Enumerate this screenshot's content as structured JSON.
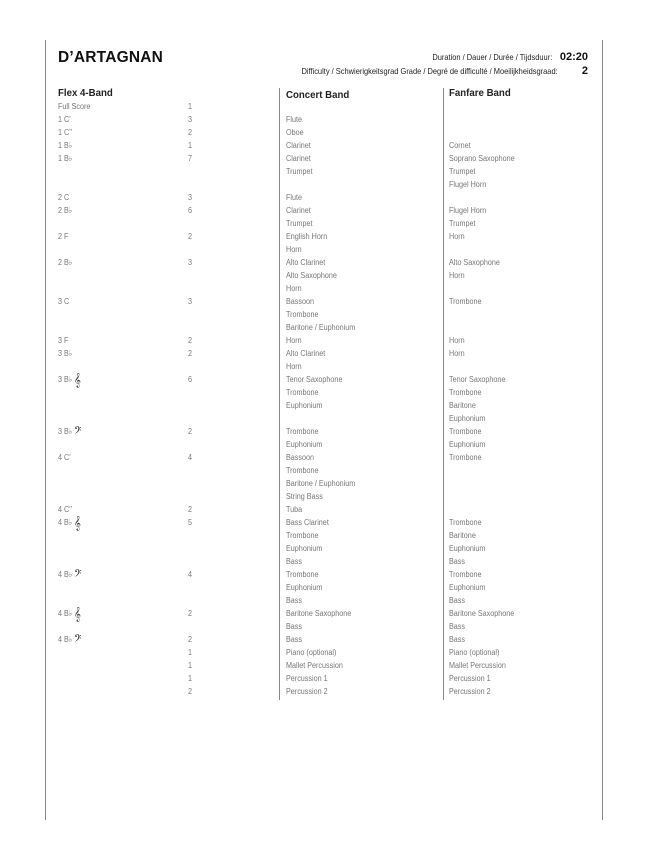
{
  "title": "D’ARTAGNAN",
  "duration": {
    "label": "Duration / Dauer / Durée / Tijdsduur:",
    "value": "02:20"
  },
  "difficulty": {
    "label": "Difficulty / Schwierigkeitsgrad Grade / Degré de difficulté / Moeilijkheidsgraad:",
    "value": "2"
  },
  "columns": {
    "flex": "Flex 4-Band",
    "concert": "Concert Band",
    "fanfare": "Fanfare Band"
  },
  "rows": [
    {
      "part": "Full Score",
      "count": "1",
      "concert": "",
      "fanfare": ""
    },
    {
      "part": "1 C'",
      "count": "3",
      "concert": "Flute",
      "fanfare": ""
    },
    {
      "part": "1 C''",
      "count": "2",
      "concert": "Oboe",
      "fanfare": ""
    },
    {
      "part": "1 B♭",
      "count": "1",
      "concert": "Clarinet",
      "fanfare": "Cornet"
    },
    {
      "part": "1 B♭",
      "count": "7",
      "concert": "Clarinet",
      "fanfare": "Soprano Saxophone"
    },
    {
      "part": "",
      "count": "",
      "concert": "Trumpet",
      "fanfare": "Trumpet"
    },
    {
      "part": "",
      "count": "",
      "concert": "",
      "fanfare": "Flugel Horn"
    },
    {
      "part": "2 C",
      "count": "3",
      "concert": "Flute",
      "fanfare": ""
    },
    {
      "part": "2 B♭",
      "count": "6",
      "concert": "Clarinet",
      "fanfare": "Flugel Horn"
    },
    {
      "part": "",
      "count": "",
      "concert": "Trumpet",
      "fanfare": "Trumpet"
    },
    {
      "part": "2 F",
      "count": "2",
      "concert": "English Horn",
      "fanfare": "Horn"
    },
    {
      "part": "",
      "count": "",
      "concert": "Horn",
      "fanfare": ""
    },
    {
      "part": "2 B♭",
      "count": "3",
      "concert": "Alto Clarinet",
      "fanfare": "Alto Saxophone"
    },
    {
      "part": "",
      "count": "",
      "concert": "Alto Saxophone",
      "fanfare": "Horn"
    },
    {
      "part": "",
      "count": "",
      "concert": "Horn",
      "fanfare": ""
    },
    {
      "part": "3 C",
      "count": "3",
      "concert": "Bassoon",
      "fanfare": "Trombone"
    },
    {
      "part": "",
      "count": "",
      "concert": "Trombone",
      "fanfare": ""
    },
    {
      "part": "",
      "count": "",
      "concert": "Baritone / Euphonium",
      "fanfare": ""
    },
    {
      "part": "3 F",
      "count": "2",
      "concert": "Horn",
      "fanfare": "Horn"
    },
    {
      "part": "3 B♭",
      "count": "2",
      "concert": "Alto Clarinet",
      "fanfare": "Horn"
    },
    {
      "part": "",
      "count": "",
      "concert": "Horn",
      "fanfare": ""
    },
    {
      "part": "3 B♭",
      "clef": "treble",
      "count": "6",
      "concert": "Tenor Saxophone",
      "fanfare": "Tenor Saxophone"
    },
    {
      "part": "",
      "count": "",
      "concert": "Trombone",
      "fanfare": "Trombone"
    },
    {
      "part": "",
      "count": "",
      "concert": "Euphonium",
      "fanfare": "Baritone"
    },
    {
      "part": "",
      "count": "",
      "concert": "",
      "fanfare": "Euphonium"
    },
    {
      "part": "3 B♭",
      "clef": "bass",
      "count": "2",
      "concert": "Trombone",
      "fanfare": "Trombone"
    },
    {
      "part": "",
      "count": "",
      "concert": "Euphonium",
      "fanfare": "Euphonium"
    },
    {
      "part": "4 C'",
      "count": "4",
      "concert": "Bassoon",
      "fanfare": "Trombone"
    },
    {
      "part": "",
      "count": "",
      "concert": "Trombone",
      "fanfare": ""
    },
    {
      "part": "",
      "count": "",
      "concert": "Baritone / Euphonium",
      "fanfare": ""
    },
    {
      "part": "",
      "count": "",
      "concert": "String Bass",
      "fanfare": ""
    },
    {
      "part": "4 C''",
      "count": "2",
      "concert": "Tuba",
      "fanfare": ""
    },
    {
      "part": "4 B♭",
      "clef": "treble",
      "count": "5",
      "concert": "Bass Clarinet",
      "fanfare": "Trombone"
    },
    {
      "part": "",
      "count": "",
      "concert": "Trombone",
      "fanfare": "Baritone"
    },
    {
      "part": "",
      "count": "",
      "concert": "Euphonium",
      "fanfare": "Euphonium"
    },
    {
      "part": "",
      "count": "",
      "concert": "Bass",
      "fanfare": "Bass"
    },
    {
      "part": "4 B♭",
      "clef": "bass",
      "count": "4",
      "concert": "Trombone",
      "fanfare": "Trombone"
    },
    {
      "part": "",
      "count": "",
      "concert": "Euphonium",
      "fanfare": "Euphonium"
    },
    {
      "part": "",
      "count": "",
      "concert": "Bass",
      "fanfare": "Bass"
    },
    {
      "part": "4 B♭",
      "clef": "treble",
      "count": "2",
      "concert": "Baritone Saxophone",
      "fanfare": "Baritone Saxophone"
    },
    {
      "part": "",
      "count": "",
      "concert": "Bass",
      "fanfare": "Bass"
    },
    {
      "part": "4 B♭",
      "clef": "bass",
      "count": "2",
      "concert": "Bass",
      "fanfare": "Bass"
    },
    {
      "part": "",
      "count": "1",
      "concert": "Piano (optional)",
      "fanfare": "Piano (optional)"
    },
    {
      "part": "",
      "count": "1",
      "concert": "Mallet Percussion",
      "fanfare": "Mallet Percussion"
    },
    {
      "part": "",
      "count": "1",
      "concert": "Percussion 1",
      "fanfare": "Percussion 1"
    },
    {
      "part": "",
      "count": "2",
      "concert": "Percussion 2",
      "fanfare": "Percussion 2"
    }
  ]
}
